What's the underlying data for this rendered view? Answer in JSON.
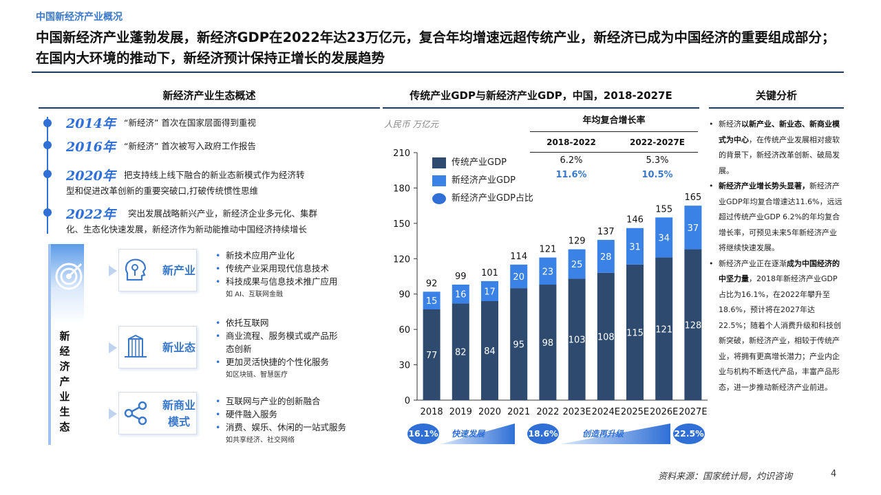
{
  "header": {
    "crumb": "中国新经济产业概况",
    "title": "中国新经济产业蓬勃发展，新经济GDP在2022年达23万亿元，复合年均增速远超传统产业，新经济已成为中国经济的重要组成部分；在国内大环境的推动下，新经济预计保持正增长的发展趋势"
  },
  "left": {
    "heading": "新经济产业生态概述",
    "timeline": [
      {
        "year": "2014年",
        "text": "“新经济” 首次在国家层面得到重视"
      },
      {
        "year": "2016年",
        "text": "“新经济” 首次被写入政府工作报告"
      },
      {
        "year": "2020年",
        "text": "把支持线上线下融合的新业态新模式作为经济转",
        "text2": "型和促进改革创新的重要突破口,打破传统惯性思维"
      },
      {
        "year": "2022年",
        "text": "突出发展战略新兴产业，新经济企业多元化、集群",
        "text2": "化、生态化快速发展，新经济作为新动能推动中国经济持续增长"
      }
    ],
    "eco_vertical": "新经济产业生态",
    "eco": [
      {
        "label": "新产业",
        "icon": "ai-head-icon",
        "items": [
          "新技术应用产业化",
          "传统产业采用现代信息技术",
          "科技成果与信息技术推广应用"
        ],
        "note": "如 AI、互联网金融"
      },
      {
        "label": "新业态",
        "icon": "building-icon",
        "items": [
          "依托互联网",
          "商业流程、服务模式或产品形",
          "态创新",
          "更加灵活快捷的个性化服务"
        ],
        "note": "如区块链、智慧医疗"
      },
      {
        "label": "新商业模式",
        "label_l1": "新商业",
        "label_l2": "模式",
        "icon": "share-icon",
        "items": [
          "互联网与产业的创新融合",
          "硬件融入服务",
          "消费、娱乐、休闲的一站式服务"
        ],
        "note": "如共享经济、社交网络"
      }
    ]
  },
  "middle": {
    "heading": "传统产业GDP与新经济产业GDP，中国，2018-2027E",
    "unit": "人民币 万亿元",
    "cagr_title": "年均复合增长率",
    "cagr_cols": [
      "2018-2022",
      "2022-2027E"
    ],
    "cagr_traditional": [
      "6.2%",
      "5.3%"
    ],
    "cagr_new": [
      "11.6%",
      "10.5%"
    ],
    "legend": [
      "传统产业GDP",
      "新经济产业GDP",
      "新经济产业GDP占比"
    ],
    "share_pills": [
      "16.1%",
      "18.6%",
      "22.5%"
    ],
    "phase_labels": [
      "快速发展",
      "创造再升级"
    ]
  },
  "chart_data": {
    "type": "bar",
    "stacked": true,
    "categories": [
      "2018",
      "2019",
      "2020",
      "2021",
      "2022",
      "2023E",
      "2024E",
      "2025E",
      "2026E",
      "2027E"
    ],
    "series": [
      {
        "name": "传统产业GDP",
        "values": [
          77,
          82,
          84,
          95,
          98,
          103,
          108,
          115,
          121,
          128
        ],
        "color": "#2e4a6e"
      },
      {
        "name": "新经济产业GDP",
        "values": [
          15,
          16,
          17,
          20,
          23,
          25,
          28,
          31,
          34,
          37
        ],
        "color": "#3b82e6"
      }
    ],
    "totals": [
      92,
      99,
      101,
      114,
      121,
      129,
      137,
      146,
      155,
      165
    ],
    "ylim": [
      0,
      210
    ],
    "yticks": [
      "0",
      "30",
      "60",
      "90",
      "120",
      "150",
      "180",
      "210"
    ],
    "ylabel": "人民币 万亿元"
  },
  "right": {
    "heading": "关键分析",
    "p1_a": "新经济",
    "p1_b": "以新产业、新业态、新商业模式为中心",
    "p1_c": "，在传统产业发展相对疲软的背景下，新经济改革创新、破局发展。",
    "p2_a": "新经济产业增长势头显著，",
    "p2_b": "新经济产业GDP年均复合增速达11.6%，远远超过传统产业GDP 6.2%的年均复合增长率，可预见未来5年新经济产业将继续快速发展。",
    "p3_a": "新经济产业正在逐渐",
    "p3_b": "成为中国经济的中坚力量",
    "p3_c": "，2018年新经济产业GDP占比为16.1%，在2022年攀升至18.6%，预计将在2027年达22.5%；随着个人消费升级和科技创新突破，新经济产业，相较于传统产业，将拥有更高增长潜力；产业内企业与机构不断迭代产品，丰富产品形态，进一步推动新经济产业前进。"
  },
  "footer": {
    "source": "资料来源：国家统计局，灼识咨询",
    "page": "4"
  },
  "colors": {
    "accent": "#3a78c9",
    "dark_bar": "#2e4a6e",
    "light_bar": "#3b82e6",
    "rule": "#1f3a5f"
  }
}
